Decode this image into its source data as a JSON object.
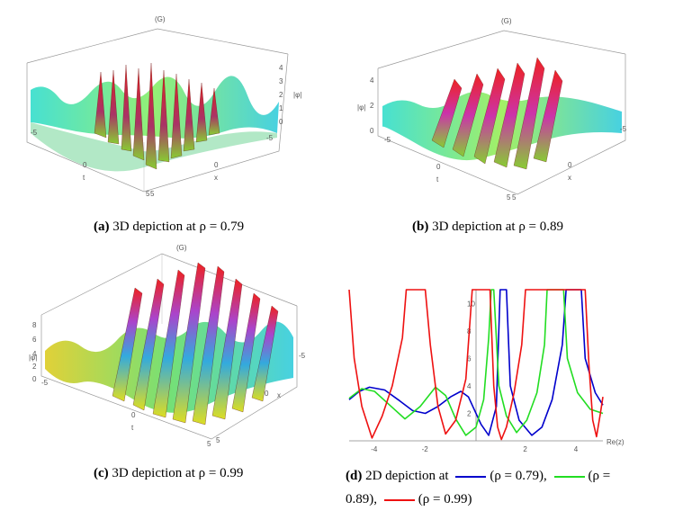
{
  "panels": {
    "a": {
      "label": "(G)",
      "axis_t": "t",
      "axis_x": "x",
      "axis_z": "|φ|",
      "t_ticks": [
        "-5",
        "0",
        "5"
      ],
      "x_ticks": [
        "-5",
        "0",
        "5"
      ],
      "z_ticks": [
        "0",
        "1",
        "2",
        "3",
        "4"
      ],
      "caption_prefix": "(a)",
      "caption_text": "3D depiction at ρ = 0.79"
    },
    "b": {
      "label": "(G)",
      "axis_t": "t",
      "axis_x": "x",
      "axis_z": "|φ|",
      "t_ticks": [
        "-5",
        "0",
        "5"
      ],
      "x_ticks": [
        "-5",
        "0",
        "5"
      ],
      "z_ticks": [
        "0",
        "2",
        "4"
      ],
      "caption_prefix": "(b)",
      "caption_text": "3D depiction at ρ = 0.89"
    },
    "c": {
      "label": "(G)",
      "axis_t": "t",
      "axis_x": "x",
      "axis_z": "|φ|",
      "t_ticks": [
        "-5",
        "0",
        "5"
      ],
      "x_ticks": [
        "-5",
        "0",
        "5"
      ],
      "z_ticks": [
        "0",
        "2",
        "4",
        "6",
        "8"
      ],
      "caption_prefix": "(c)",
      "caption_text": "3D depiction at ρ = 0.99"
    },
    "d": {
      "caption_prefix": "(d)",
      "caption_part1": "2D depiction at",
      "caption_part2": "(ρ = 0.79),",
      "caption_part3": "(ρ =",
      "caption_part4": "0.89),",
      "caption_part5": "(ρ = 0.99)"
    }
  },
  "chart_data": {
    "type": "line",
    "xlabel": "Re(z)",
    "ylabel": "",
    "xlim": [
      -5,
      5
    ],
    "ylim": [
      0,
      11
    ],
    "x_ticks": [
      "-4",
      "-2",
      "2",
      "4"
    ],
    "y_ticks": [
      "2",
      "4",
      "6",
      "8",
      "10"
    ],
    "series": [
      {
        "name": "ρ = 0.79",
        "color": "#0000cc",
        "points": [
          [
            -5,
            3.0
          ],
          [
            -4.6,
            3.6
          ],
          [
            -4.2,
            3.9
          ],
          [
            -3.6,
            3.7
          ],
          [
            -3.0,
            2.9
          ],
          [
            -2.5,
            2.2
          ],
          [
            -2.0,
            2.0
          ],
          [
            -1.5,
            2.5
          ],
          [
            -1.0,
            3.2
          ],
          [
            -0.6,
            3.6
          ],
          [
            -0.3,
            3.2
          ],
          [
            0.2,
            1.2
          ],
          [
            0.5,
            0.4
          ],
          [
            0.8,
            2.5
          ],
          [
            0.95,
            11
          ],
          [
            1.2,
            11
          ],
          [
            1.35,
            4.0
          ],
          [
            1.7,
            1.5
          ],
          [
            2.2,
            0.4
          ],
          [
            2.6,
            1.0
          ],
          [
            3.0,
            3.0
          ],
          [
            3.4,
            7.0
          ],
          [
            3.55,
            11
          ],
          [
            4.15,
            11
          ],
          [
            4.3,
            6.0
          ],
          [
            4.7,
            3.5
          ],
          [
            5,
            2.6
          ]
        ]
      },
      {
        "name": "ρ = 0.89",
        "color": "#22dd22",
        "points": [
          [
            -5,
            3.1
          ],
          [
            -4.5,
            3.8
          ],
          [
            -4.0,
            3.6
          ],
          [
            -3.4,
            2.6
          ],
          [
            -2.8,
            1.6
          ],
          [
            -2.2,
            2.5
          ],
          [
            -1.6,
            3.9
          ],
          [
            -1.2,
            3.3
          ],
          [
            -0.8,
            1.6
          ],
          [
            -0.4,
            0.4
          ],
          [
            0.0,
            1.0
          ],
          [
            0.3,
            3.0
          ],
          [
            0.5,
            7.5
          ],
          [
            0.6,
            11
          ],
          [
            0.7,
            11
          ],
          [
            0.9,
            4.0
          ],
          [
            1.2,
            1.8
          ],
          [
            1.6,
            0.6
          ],
          [
            2.0,
            1.5
          ],
          [
            2.4,
            3.5
          ],
          [
            2.7,
            7.0
          ],
          [
            2.8,
            11
          ],
          [
            3.45,
            11
          ],
          [
            3.6,
            6.0
          ],
          [
            4.0,
            3.5
          ],
          [
            4.5,
            2.3
          ],
          [
            5,
            2.0
          ]
        ]
      },
      {
        "name": "ρ = 0.99",
        "color": "#ee1111",
        "points": [
          [
            -5,
            11
          ],
          [
            -4.8,
            6.0
          ],
          [
            -4.5,
            2.5
          ],
          [
            -4.1,
            0.2
          ],
          [
            -3.7,
            1.8
          ],
          [
            -3.3,
            4.0
          ],
          [
            -2.9,
            7.5
          ],
          [
            -2.75,
            11
          ],
          [
            -2.0,
            11
          ],
          [
            -1.8,
            7.0
          ],
          [
            -1.5,
            2.5
          ],
          [
            -1.2,
            0.5
          ],
          [
            -0.8,
            1.5
          ],
          [
            -0.4,
            4.5
          ],
          [
            -0.15,
            11
          ],
          [
            0.55,
            11
          ],
          [
            0.7,
            4.0
          ],
          [
            0.85,
            1.0
          ],
          [
            1.0,
            0.1
          ],
          [
            1.2,
            1.0
          ],
          [
            1.5,
            3.5
          ],
          [
            1.8,
            7.0
          ],
          [
            1.95,
            11
          ],
          [
            4.3,
            11
          ],
          [
            4.45,
            5.5
          ],
          [
            4.6,
            1.5
          ],
          [
            4.75,
            0.3
          ],
          [
            4.9,
            2.0
          ],
          [
            5,
            3.2
          ]
        ]
      }
    ]
  }
}
